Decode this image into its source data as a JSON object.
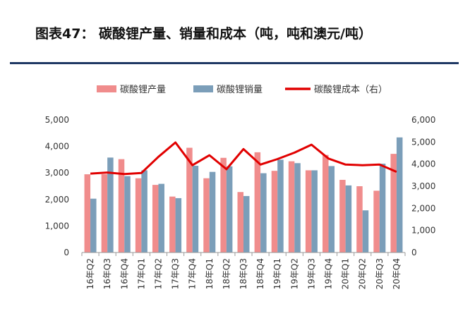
{
  "figure_title": "图表47： 碳酸锂产量、销量和成本（吨，吨和澳元/吨）",
  "colors": {
    "production": "#f08c8c",
    "sales": "#7b9eb9",
    "cost": "#e10000",
    "rule": "#1f3864"
  },
  "chart_data": {
    "type": "bar",
    "title": "",
    "categories": [
      "16年Q2",
      "16年Q3",
      "16年Q4",
      "17年Q1",
      "17年Q2",
      "17年Q3",
      "17年Q4",
      "18年Q1",
      "18年Q2",
      "18年Q3",
      "18年Q4",
      "19年Q1",
      "19年Q2",
      "19年Q3",
      "19年Q4",
      "20年Q1",
      "20年Q2",
      "20年Q3",
      "20年Q4"
    ],
    "series": [
      {
        "name": "碳酸锂产量",
        "type": "bar",
        "axis": "left",
        "values": [
          2950,
          2950,
          3520,
          2800,
          2550,
          2110,
          3950,
          2800,
          3570,
          2280,
          3780,
          3080,
          3440,
          3100,
          3680,
          2740,
          2500,
          2330,
          3720
        ]
      },
      {
        "name": "碳酸锂销量",
        "type": "bar",
        "axis": "left",
        "values": [
          2030,
          3580,
          2880,
          3100,
          2590,
          2050,
          3270,
          3040,
          3250,
          2130,
          2990,
          3500,
          3370,
          3100,
          3260,
          2530,
          1590,
          3350,
          4340
        ]
      },
      {
        "name": "碳酸锂成本（右）",
        "type": "line",
        "axis": "right",
        "values": [
          3570,
          3620,
          3550,
          3600,
          4330,
          4980,
          3950,
          4400,
          3770,
          4680,
          3980,
          4230,
          4520,
          4880,
          4250,
          3980,
          3950,
          3980,
          3650
        ]
      }
    ],
    "left_axis": {
      "min": 0,
      "max": 5000,
      "ticks": [
        "0",
        "1,000",
        "2,000",
        "3,000",
        "4,000",
        "5,000"
      ]
    },
    "right_axis": {
      "min": 0,
      "max": 6000,
      "ticks": [
        "0",
        "1,000",
        "2,000",
        "3,000",
        "4,000",
        "5,000",
        "6,000"
      ]
    },
    "grid": false,
    "legend_position": "top"
  }
}
